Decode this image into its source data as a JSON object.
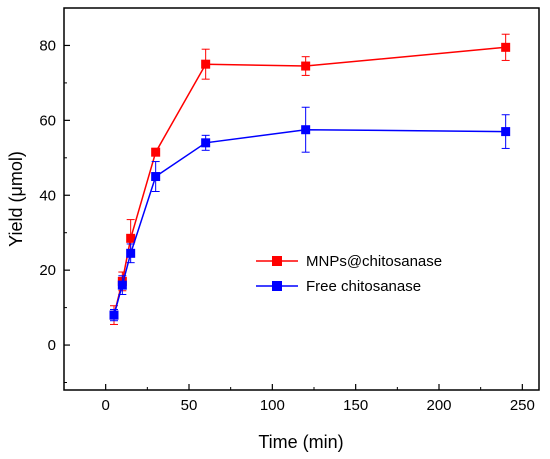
{
  "chart_data": {
    "type": "line",
    "xlabel": "Time (min)",
    "ylabel": "Yield (μmol)",
    "xlim": [
      -25,
      260
    ],
    "ylim": [
      -12,
      90
    ],
    "xticks": [
      0,
      50,
      100,
      150,
      200,
      250
    ],
    "yticks": [
      0,
      20,
      40,
      60,
      80
    ],
    "grid": false,
    "legend_position": "center-right",
    "series": [
      {
        "name": "MNPs@chitosanase",
        "color": "#ff0000",
        "x": [
          5,
          10,
          15,
          30,
          60,
          120,
          240
        ],
        "y": [
          8,
          17,
          28.5,
          51.5,
          75,
          74.5,
          79.5
        ],
        "error": [
          2.5,
          2.5,
          5,
          1,
          4,
          2.5,
          3.5
        ]
      },
      {
        "name": "Free chitosanase",
        "color": "#0000ff",
        "x": [
          5,
          10,
          15,
          30,
          60,
          120,
          240
        ],
        "y": [
          8,
          16,
          24.5,
          45,
          54,
          57.5,
          57
        ],
        "error": [
          1.5,
          2.5,
          2.5,
          4,
          2,
          6,
          4.5
        ]
      }
    ]
  }
}
